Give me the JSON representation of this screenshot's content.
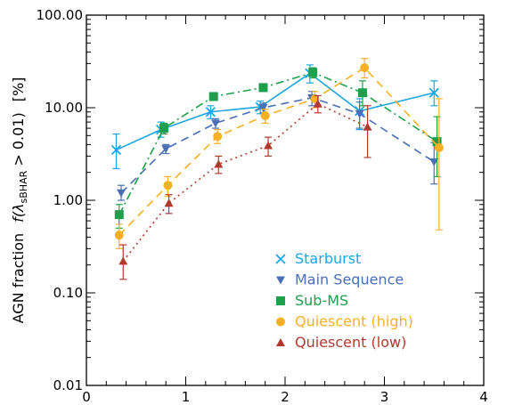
{
  "chart_data": {
    "type": "line",
    "ylabel": "AGN fraction   f(λsBHAR > 0.01)   [%]",
    "ylabel_prefix": "AGN fraction",
    "ylabel_math": "f(λ",
    "ylabel_sub": "sBHAR",
    "ylabel_tail": " > 0.01)",
    "ylabel_unit": "[%]",
    "xlabel": "",
    "xlim": [
      0,
      4
    ],
    "ylim": [
      0.01,
      100
    ],
    "yscale": "log",
    "x_ticks": [
      "0",
      "1",
      "2",
      "3",
      "4"
    ],
    "y_ticks": [
      "0.01",
      "0.10",
      "1.00",
      "10.00",
      "100.00"
    ],
    "legend_position": "bottom-right",
    "series": [
      {
        "name": "Starburst",
        "color": "#1aa7e0",
        "marker": "x",
        "line": "solid",
        "x": [
          0.3,
          0.75,
          1.25,
          1.75,
          2.25,
          2.75,
          3.5
        ],
        "y": [
          3.5,
          5.8,
          9.0,
          10.2,
          23.5,
          9.2,
          14.5
        ],
        "err_low": [
          2.2,
          4.8,
          7.6,
          8.6,
          18.5,
          5.8,
          10.5
        ],
        "err_high": [
          5.2,
          7.0,
          10.5,
          11.8,
          29.0,
          12.5,
          19.5
        ]
      },
      {
        "name": "Main Sequence",
        "color": "#4a6fb5",
        "marker": "triangle-down",
        "line": "dashed",
        "x": [
          0.35,
          0.8,
          1.3,
          1.78,
          2.27,
          2.75,
          3.5
        ],
        "y": [
          1.2,
          3.6,
          6.8,
          10.0,
          12.8,
          8.6,
          2.6
        ],
        "err_low": [
          1.0,
          3.2,
          6.0,
          8.8,
          10.5,
          6.0,
          1.5
        ],
        "err_high": [
          1.45,
          4.0,
          7.6,
          11.2,
          15.0,
          11.5,
          4.2
        ]
      },
      {
        "name": "Sub-MS",
        "color": "#1e9f4c",
        "marker": "square",
        "line": "dash-dot",
        "x": [
          0.33,
          0.78,
          1.28,
          1.78,
          2.28,
          2.78,
          3.53
        ],
        "y": [
          0.7,
          6.0,
          13.2,
          16.5,
          24.0,
          14.5,
          4.3
        ],
        "err_low": [
          0.5,
          5.2,
          12.0,
          15.0,
          21.0,
          10.5,
          1.8
        ],
        "err_high": [
          0.9,
          6.8,
          14.5,
          18.0,
          27.0,
          19.5,
          8.0
        ]
      },
      {
        "name": "Quiescent (high)",
        "color": "#f5b025",
        "marker": "circle",
        "line": "dashed",
        "x": [
          0.33,
          0.82,
          1.32,
          1.8,
          2.3,
          2.8,
          3.55
        ],
        "y": [
          0.42,
          1.45,
          4.9,
          8.2,
          12.5,
          27.0,
          3.7
        ],
        "err_low": [
          0.3,
          1.1,
          4.1,
          6.8,
          10.0,
          21.0,
          0.48
        ],
        "err_high": [
          0.55,
          1.8,
          5.8,
          9.6,
          15.0,
          34.0,
          12.5
        ]
      },
      {
        "name": "Quiescent (low)",
        "color": "#b03a2e",
        "marker": "triangle-up",
        "line": "dotted",
        "x": [
          0.37,
          0.83,
          1.33,
          1.83,
          2.33,
          2.83
        ],
        "y": [
          0.22,
          0.93,
          2.45,
          3.9,
          11.0,
          6.2
        ],
        "err_low": [
          0.14,
          0.72,
          1.95,
          3.0,
          8.8,
          2.9
        ],
        "err_high": [
          0.33,
          1.15,
          3.0,
          4.8,
          13.5,
          10.5
        ]
      }
    ]
  }
}
